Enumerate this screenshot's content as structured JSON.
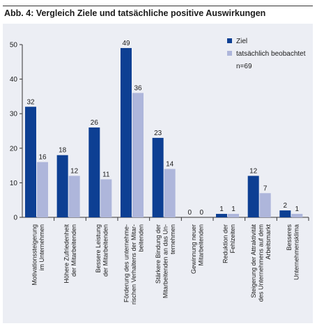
{
  "header": {
    "title": "Abb. 4: Vergleich Ziele und tatsächliche positive Auswirkungen"
  },
  "chart_data": {
    "type": "bar",
    "title": "Abb. 4: Vergleich Ziele und tatsächliche positive Auswirkungen",
    "xlabel": "",
    "ylabel": "",
    "ylim": [
      0,
      50
    ],
    "yticks": [
      0,
      10,
      20,
      30,
      40,
      50
    ],
    "grid": false,
    "legend_position": "top-right",
    "legend_note": "n=69",
    "categories": [
      [
        "Motivationssteigerung",
        "im Unternehmen"
      ],
      [
        "Höhere Zufriedenheit",
        "der Mitarbeitenden"
      ],
      [
        "Bessere Leistung",
        "der Mitarbeitenden"
      ],
      [
        "Förderung des unternehme-",
        "rischen Verhaltens der Mitar-",
        "beitenden"
      ],
      [
        "Stärkere Bindung der",
        "Mitarbeitenden an das Un-",
        "ternehmen"
      ],
      [
        "Gewinnung neuer",
        "Mitarbeitenden"
      ],
      [
        "Reduktion der",
        "Fehlzeiten"
      ],
      [
        "Steigerung der Attraktivität",
        "des Unternehmens auf dem",
        "Arbeitsmarkt"
      ],
      [
        "Besseres",
        "Unternehmensklima"
      ]
    ],
    "series": [
      {
        "name": "Ziel",
        "color": "#0d3f93",
        "values": [
          32,
          18,
          26,
          49,
          23,
          0,
          1,
          12,
          2
        ]
      },
      {
        "name": "tatsächlich beobachtet",
        "color": "#aeb6db",
        "values": [
          16,
          12,
          11,
          36,
          14,
          0,
          1,
          7,
          1
        ]
      }
    ]
  }
}
